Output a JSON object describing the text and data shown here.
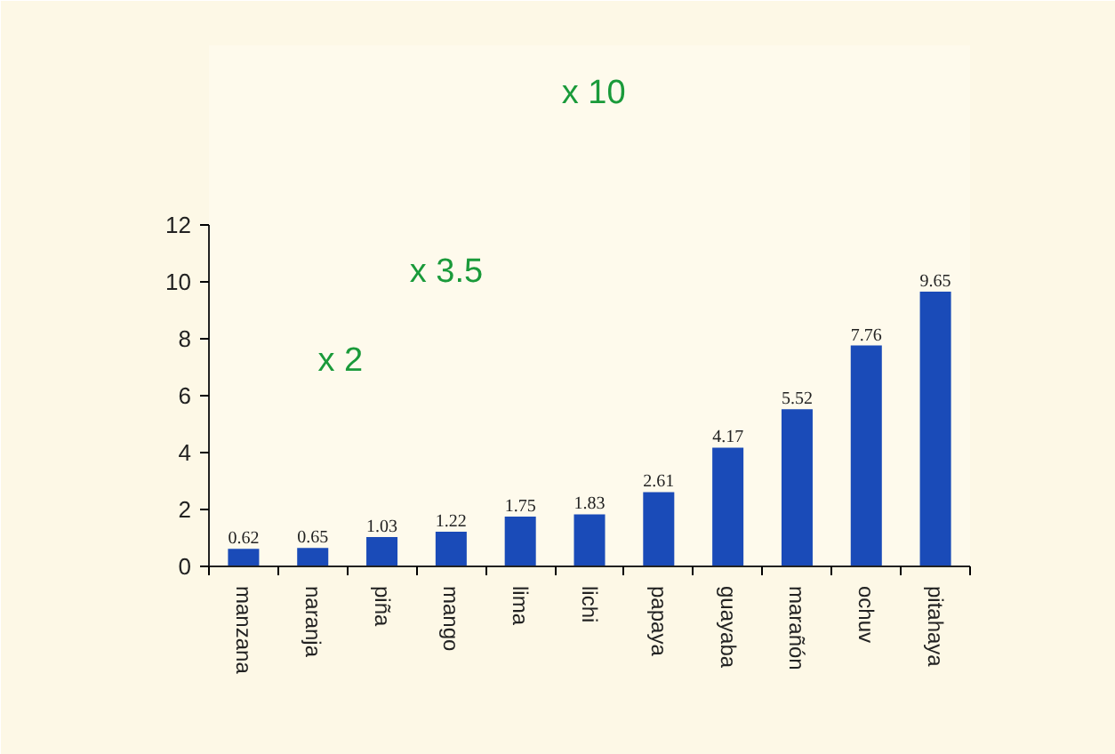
{
  "chart_data": {
    "type": "bar",
    "categories": [
      "manzana",
      "naranja",
      "piña",
      "mango",
      "lima",
      "lichi",
      "papaya",
      "guayaba",
      "marañón",
      "ochuv",
      "pitahaya"
    ],
    "values": [
      0.62,
      0.65,
      1.03,
      1.22,
      1.75,
      1.83,
      2.61,
      4.17,
      5.52,
      7.76,
      9.65
    ],
    "color": "#1a4bb8",
    "data_labels": true,
    "ylim": [
      0,
      12
    ],
    "yticks": [
      0,
      2,
      4,
      6,
      8,
      10,
      12
    ],
    "grid": false,
    "annotations": [
      "x 2",
      "x 3.5",
      "x 10"
    ]
  }
}
